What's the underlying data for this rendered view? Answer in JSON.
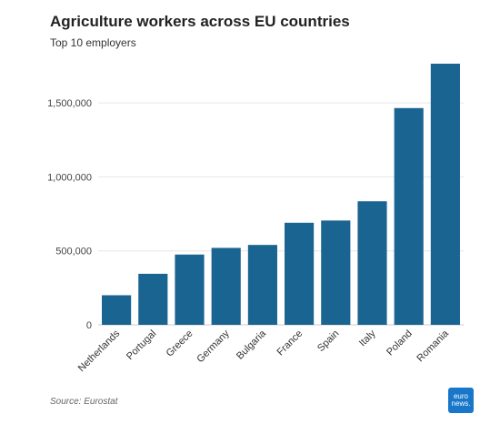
{
  "chart_data": {
    "type": "bar",
    "title": "Agriculture workers across EU countries",
    "subtitle": "Top 10 employers",
    "categories": [
      "Netherlands",
      "Portugal",
      "Greece",
      "Germany",
      "Bulgaria",
      "France",
      "Spain",
      "Italy",
      "Poland",
      "Romania"
    ],
    "values": [
      200000,
      345000,
      475000,
      520000,
      540000,
      690000,
      705000,
      835000,
      1465000,
      1765000
    ],
    "ylim": [
      0,
      1765000
    ],
    "yticks": [
      0,
      500000,
      1000000,
      1500000
    ],
    "ytick_labels": [
      "0",
      "500,000",
      "1,000,000",
      "1,500,000"
    ],
    "xlabel": "",
    "ylabel": "",
    "grid": true,
    "bar_color": "#1a6491"
  },
  "source": "Source: Eurostat",
  "logo": {
    "line1": "euro",
    "line2": "news.",
    "color": "#1877c9"
  }
}
